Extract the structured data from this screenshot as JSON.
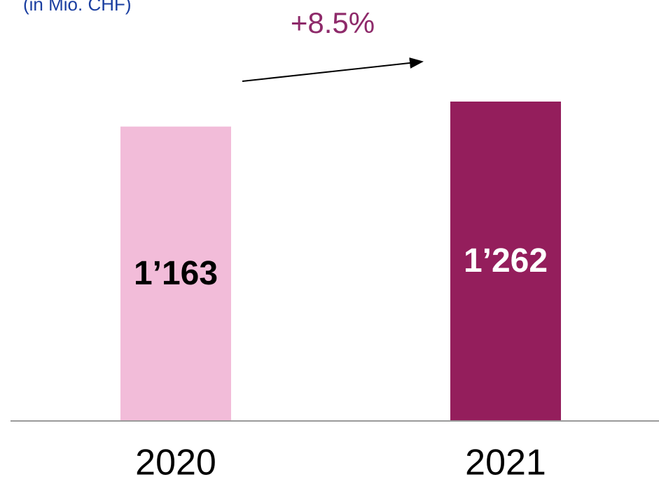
{
  "chart_data": {
    "type": "bar",
    "subtitle": "(in Mio. CHF)",
    "annotation": "+8.5%",
    "categories": [
      "2020",
      "2021"
    ],
    "values": [
      1163,
      1262
    ],
    "value_labels": [
      "1’163",
      "1’262"
    ],
    "colors": [
      "#f2bcd9",
      "#941e5c"
    ],
    "label_colors": [
      "#000000",
      "#ffffff"
    ]
  }
}
